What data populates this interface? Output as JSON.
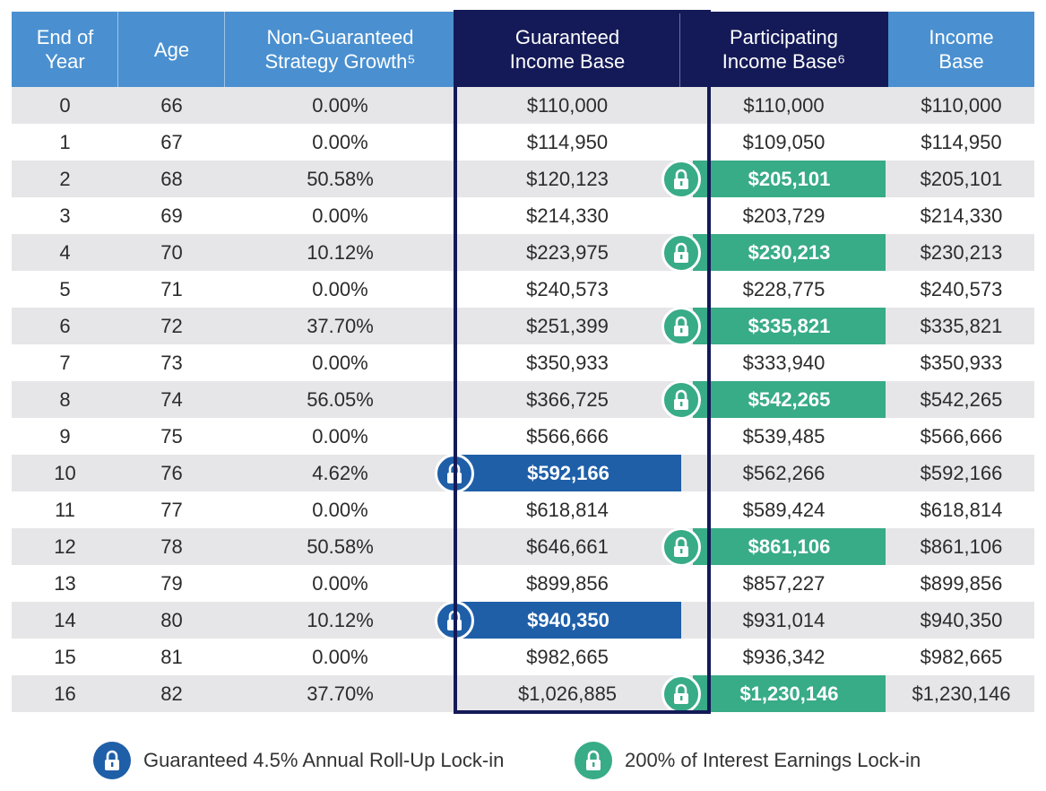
{
  "headers": {
    "end_of_year": "End of Year",
    "age": "Age",
    "strategy_growth": "Non-Guaranteed Strategy Growth⁵",
    "guaranteed_base": "Guaranteed Income Base",
    "participating_base": "Participating Income Base⁶",
    "income_base": "Income Base"
  },
  "rows": [
    {
      "year": "0",
      "age": "66",
      "growth": "0.00%",
      "guaranteed": "$110,000",
      "participating": "$110,000",
      "income": "$110,000",
      "lock": ""
    },
    {
      "year": "1",
      "age": "67",
      "growth": "0.00%",
      "guaranteed": "$114,950",
      "participating": "$109,050",
      "income": "$114,950",
      "lock": ""
    },
    {
      "year": "2",
      "age": "68",
      "growth": "50.58%",
      "guaranteed": "$120,123",
      "participating": "$205,101",
      "income": "$205,101",
      "lock": "participating"
    },
    {
      "year": "3",
      "age": "69",
      "growth": "0.00%",
      "guaranteed": "$214,330",
      "participating": "$203,729",
      "income": "$214,330",
      "lock": ""
    },
    {
      "year": "4",
      "age": "70",
      "growth": "10.12%",
      "guaranteed": "$223,975",
      "participating": "$230,213",
      "income": "$230,213",
      "lock": "participating"
    },
    {
      "year": "5",
      "age": "71",
      "growth": "0.00%",
      "guaranteed": "$240,573",
      "participating": "$228,775",
      "income": "$240,573",
      "lock": ""
    },
    {
      "year": "6",
      "age": "72",
      "growth": "37.70%",
      "guaranteed": "$251,399",
      "participating": "$335,821",
      "income": "$335,821",
      "lock": "participating"
    },
    {
      "year": "7",
      "age": "73",
      "growth": "0.00%",
      "guaranteed": "$350,933",
      "participating": "$333,940",
      "income": "$350,933",
      "lock": ""
    },
    {
      "year": "8",
      "age": "74",
      "growth": "56.05%",
      "guaranteed": "$366,725",
      "participating": "$542,265",
      "income": "$542,265",
      "lock": "participating"
    },
    {
      "year": "9",
      "age": "75",
      "growth": "0.00%",
      "guaranteed": "$566,666",
      "participating": "$539,485",
      "income": "$566,666",
      "lock": ""
    },
    {
      "year": "10",
      "age": "76",
      "growth": "4.62%",
      "guaranteed": "$592,166",
      "participating": "$562,266",
      "income": "$592,166",
      "lock": "guaranteed"
    },
    {
      "year": "11",
      "age": "77",
      "growth": "0.00%",
      "guaranteed": "$618,814",
      "participating": "$589,424",
      "income": "$618,814",
      "lock": ""
    },
    {
      "year": "12",
      "age": "78",
      "growth": "50.58%",
      "guaranteed": "$646,661",
      "participating": "$861,106",
      "income": "$861,106",
      "lock": "participating"
    },
    {
      "year": "13",
      "age": "79",
      "growth": "0.00%",
      "guaranteed": "$899,856",
      "participating": "$857,227",
      "income": "$899,856",
      "lock": ""
    },
    {
      "year": "14",
      "age": "80",
      "growth": "10.12%",
      "guaranteed": "$940,350",
      "participating": "$931,014",
      "income": "$940,350",
      "lock": "guaranteed"
    },
    {
      "year": "15",
      "age": "81",
      "growth": "0.00%",
      "guaranteed": "$982,665",
      "participating": "$936,342",
      "income": "$982,665",
      "lock": ""
    },
    {
      "year": "16",
      "age": "82",
      "growth": "37.70%",
      "guaranteed": "$1,026,885",
      "participating": "$1,230,146",
      "income": "$1,230,146",
      "lock": "participating"
    }
  ],
  "legend": {
    "guaranteed": {
      "label": "Guaranteed 4.5% Annual Roll-Up Lock-in",
      "icon": "lock-icon",
      "color": "#1f5fa8"
    },
    "participating": {
      "label": "200% of Interest Earnings Lock-in",
      "icon": "lock-icon",
      "color": "#38ab87"
    }
  },
  "colors": {
    "header_light": "#4a90d0",
    "header_dark": "#141a57",
    "row_shade": "#e6e6e8",
    "green": "#38ab87",
    "blue": "#1f5fa8"
  }
}
